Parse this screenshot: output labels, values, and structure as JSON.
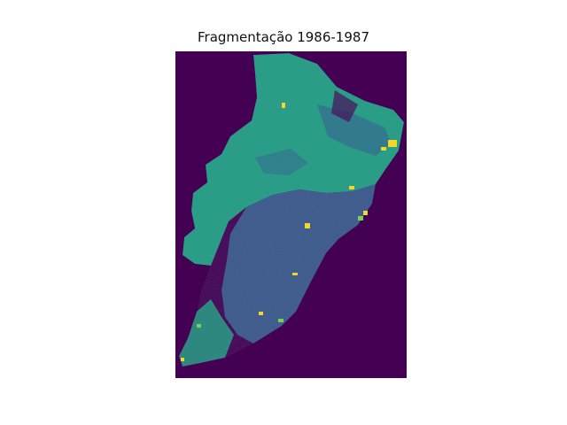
{
  "title": "Fragmentação 1986-1987",
  "colormap": "viridis",
  "colors": {
    "background_class": "#440154",
    "class_blue": "#3b5a8c",
    "class_teal": "#22a284",
    "class_mid": "#2f6e8e",
    "class_yellow": "#f2d62a",
    "class_green": "#7ad151",
    "figure_background": "#ffffff"
  }
}
